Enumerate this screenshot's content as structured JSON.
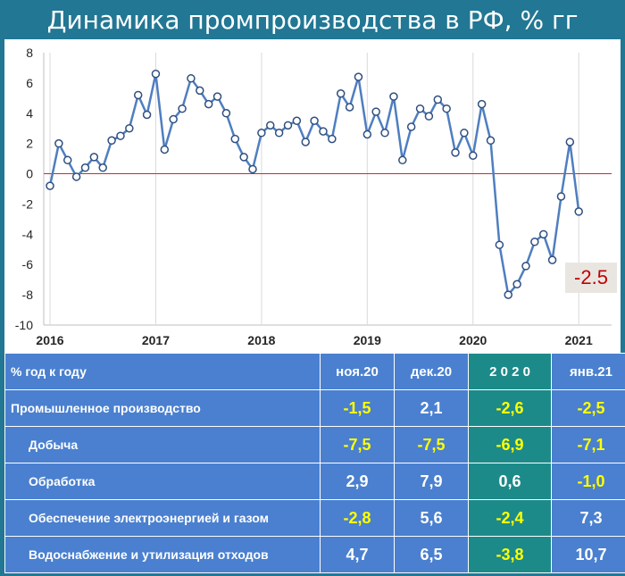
{
  "title": "Динамика промпроизводства в РФ, % гг",
  "chart_data": {
    "type": "line",
    "x_tick_labels": [
      "2016",
      "2017",
      "2018",
      "2019",
      "2020",
      "2021"
    ],
    "y_tick_labels": [
      "8",
      "6",
      "4",
      "2",
      "0",
      "-2",
      "-4",
      "-6",
      "-8",
      "-10"
    ],
    "ylim": [
      -10,
      8
    ],
    "reference_line": 0,
    "line_color": "#4f7ec0",
    "zero_line_color": "#d62728",
    "series": [
      {
        "values": [
          -0.8,
          2.0,
          0.9,
          -0.2,
          0.4,
          1.1,
          0.4,
          2.2,
          2.5,
          3.0,
          5.2,
          3.9,
          6.6,
          1.6,
          3.6,
          4.3,
          6.3,
          5.5,
          4.6,
          5.1,
          4.0,
          2.3,
          1.1,
          0.3,
          2.7,
          3.2,
          2.7,
          3.2,
          3.5,
          2.1,
          3.5,
          2.8,
          2.3,
          5.3,
          4.4,
          6.4,
          2.6,
          4.1,
          2.7,
          5.1,
          0.9,
          3.1,
          4.3,
          3.8,
          4.9,
          4.3,
          1.4,
          2.7,
          1.2,
          4.6,
          2.2,
          -4.7,
          -8.0,
          -7.3,
          -6.1,
          -4.5,
          -4.0,
          -5.7,
          -1.5,
          2.1,
          -2.5
        ]
      }
    ],
    "last_value_label": "-2.5"
  },
  "table": {
    "header": [
      "% год к году",
      "ноя.20",
      "дек.20",
      "2 0 2 0",
      "янв.21"
    ],
    "rows": [
      {
        "label": "Промышленное производство",
        "values": [
          "-1,5",
          "2,1",
          "-2,6",
          "-2,5"
        ]
      },
      {
        "label": "Добыча",
        "values": [
          "-7,5",
          "-7,5",
          "-6,9",
          "-7,1"
        ]
      },
      {
        "label": "Обработка",
        "values": [
          "2,9",
          "7,9",
          "0,6",
          "-1,0"
        ]
      },
      {
        "label": "Обеспечение электроэнергией и газом",
        "values": [
          "-2,8",
          "5,6",
          "-2,4",
          "7,3"
        ]
      },
      {
        "label": "Водоснабжение и утилизация отходов",
        "values": [
          "4,7",
          "6,5",
          "-3,8",
          "10,7"
        ]
      }
    ]
  }
}
